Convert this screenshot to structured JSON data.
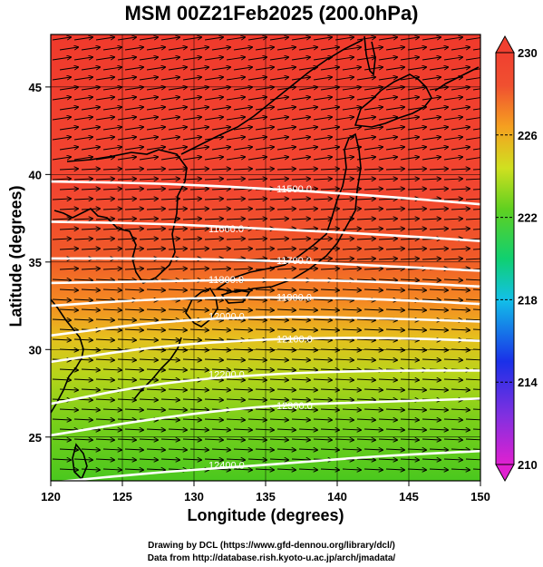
{
  "title": "MSM 00Z21Feb2025 (200.0hPa)",
  "x_axis": {
    "label": "Longitude (degrees)",
    "ticks": [
      "120",
      "125",
      "130",
      "135",
      "140",
      "145",
      "150"
    ]
  },
  "y_axis": {
    "label": "Latitude  (degrees)",
    "ticks": [
      "25",
      "30",
      "35",
      "40",
      "45"
    ]
  },
  "colorbar": {
    "ticks": [
      "210",
      "214",
      "218",
      "222",
      "226",
      "230"
    ],
    "min": 210,
    "max": 230
  },
  "contours": [
    {
      "label": "11500.0",
      "lat": [
        39.6,
        39.5,
        39.2,
        38.8,
        38.3
      ]
    },
    {
      "label": "11600.0",
      "lat": [
        37.3,
        37.2,
        36.9,
        36.6,
        36.2
      ]
    },
    {
      "label": "11700.0",
      "lat": [
        35.2,
        35.2,
        35.1,
        34.8,
        34.5
      ]
    },
    {
      "label": "11800.0",
      "lat": [
        33.8,
        33.9,
        34.0,
        33.9,
        33.6
      ]
    },
    {
      "label": "11900.0",
      "lat": [
        32.5,
        32.9,
        33.0,
        32.9,
        32.6
      ]
    },
    {
      "label": "12000.0",
      "lat": [
        30.8,
        31.6,
        31.9,
        31.8,
        31.6
      ]
    },
    {
      "label": "12100.0",
      "lat": [
        29.3,
        30.2,
        30.6,
        30.7,
        30.5
      ]
    },
    {
      "label": "12200.0",
      "lat": [
        26.9,
        28.1,
        28.6,
        28.8,
        28.8
      ]
    },
    {
      "label": "12300.0",
      "lat": [
        25.1,
        26.1,
        26.8,
        27.0,
        27.2
      ]
    },
    {
      "label": "12400.0",
      "lat": [
        22.4,
        23.0,
        23.4,
        23.9,
        24.2
      ]
    }
  ],
  "credits": {
    "line1": "Drawing by DCL (https://www.gfd-dennou.org/library/dcl/)",
    "line2": "Data from http://database.rish.kyoto-u.ac.jp/arch/jmadata/"
  }
}
